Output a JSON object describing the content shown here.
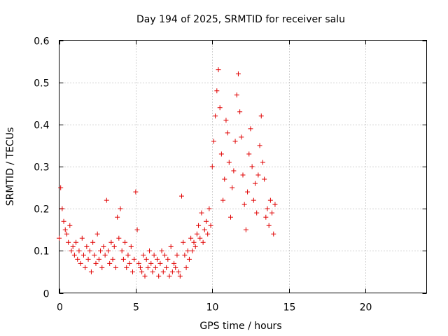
{
  "chart_data": {
    "type": "scatter",
    "title": "Day 194 of 2025, SRMTID for receiver salu",
    "xlabel": "GPS time / hours",
    "ylabel": "SRMTID / TECUs",
    "xlim": [
      0,
      24
    ],
    "ylim": [
      0,
      0.6
    ],
    "xticks": [
      0,
      5,
      10,
      15,
      20
    ],
    "yticks": [
      0,
      0.1,
      0.2,
      0.3,
      0.4,
      0.5,
      0.6
    ],
    "xtick_labels": [
      "0",
      "5",
      "10",
      "15",
      "20"
    ],
    "ytick_labels": [
      "0",
      "0.1",
      "0.2",
      "0.3",
      "0.4",
      "0.5",
      "0.6"
    ],
    "grid": true,
    "marker": "+",
    "color": "#e00000",
    "series": [
      {
        "name": "SRMTID",
        "x": [
          0.0,
          0.1,
          0.2,
          0.3,
          0.4,
          0.5,
          0.6,
          0.7,
          0.8,
          0.9,
          1.0,
          1.1,
          1.2,
          1.3,
          1.4,
          1.5,
          1.6,
          1.7,
          1.8,
          1.9,
          2.0,
          2.1,
          2.2,
          2.3,
          2.4,
          2.5,
          2.6,
          2.7,
          2.8,
          2.9,
          3.0,
          3.1,
          3.2,
          3.3,
          3.4,
          3.5,
          3.6,
          3.7,
          3.8,
          3.9,
          4.0,
          4.1,
          4.2,
          4.3,
          4.4,
          4.5,
          4.6,
          4.7,
          4.8,
          4.9,
          5.0,
          5.1,
          5.2,
          5.3,
          5.4,
          5.5,
          5.6,
          5.7,
          5.8,
          5.9,
          6.0,
          6.1,
          6.2,
          6.3,
          6.4,
          6.5,
          6.6,
          6.7,
          6.8,
          6.9,
          7.0,
          7.1,
          7.2,
          7.3,
          7.4,
          7.5,
          7.6,
          7.7,
          7.8,
          7.9,
          8.0,
          8.1,
          8.2,
          8.3,
          8.4,
          8.5,
          8.6,
          8.7,
          8.8,
          8.9,
          9.0,
          9.1,
          9.2,
          9.3,
          9.4,
          9.5,
          9.6,
          9.7,
          9.8,
          9.9,
          10.0,
          10.1,
          10.2,
          10.3,
          10.4,
          10.5,
          10.6,
          10.7,
          10.8,
          10.9,
          11.0,
          11.1,
          11.2,
          11.3,
          11.4,
          11.5,
          11.6,
          11.7,
          11.8,
          11.9,
          12.0,
          12.1,
          12.2,
          12.3,
          12.4,
          12.5,
          12.6,
          12.7,
          12.8,
          12.9,
          13.0,
          13.1,
          13.2,
          13.3,
          13.4,
          13.5,
          13.6,
          13.7,
          13.8,
          13.9,
          14.0,
          14.1
        ],
        "y": [
          0.13,
          0.25,
          0.2,
          0.17,
          0.15,
          0.14,
          0.12,
          0.16,
          0.1,
          0.11,
          0.09,
          0.12,
          0.08,
          0.1,
          0.07,
          0.13,
          0.09,
          0.06,
          0.11,
          0.08,
          0.1,
          0.05,
          0.12,
          0.09,
          0.07,
          0.14,
          0.08,
          0.1,
          0.06,
          0.11,
          0.09,
          0.22,
          0.1,
          0.07,
          0.12,
          0.08,
          0.11,
          0.06,
          0.18,
          0.13,
          0.2,
          0.1,
          0.08,
          0.12,
          0.06,
          0.09,
          0.07,
          0.11,
          0.05,
          0.08,
          0.24,
          0.15,
          0.07,
          0.06,
          0.05,
          0.09,
          0.04,
          0.08,
          0.06,
          0.1,
          0.07,
          0.05,
          0.09,
          0.06,
          0.08,
          0.04,
          0.07,
          0.1,
          0.05,
          0.09,
          0.06,
          0.08,
          0.04,
          0.11,
          0.05,
          0.07,
          0.06,
          0.09,
          0.05,
          0.04,
          0.23,
          0.12,
          0.09,
          0.06,
          0.1,
          0.08,
          0.13,
          0.1,
          0.12,
          0.11,
          0.14,
          0.16,
          0.13,
          0.19,
          0.12,
          0.15,
          0.17,
          0.14,
          0.2,
          0.16,
          0.3,
          0.36,
          0.42,
          0.48,
          0.53,
          0.44,
          0.33,
          0.22,
          0.27,
          0.41,
          0.38,
          0.31,
          0.18,
          0.25,
          0.29,
          0.36,
          0.47,
          0.52,
          0.43,
          0.37,
          0.28,
          0.21,
          0.15,
          0.24,
          0.33,
          0.39,
          0.3,
          0.22,
          0.26,
          0.19,
          0.28,
          0.35,
          0.42,
          0.31,
          0.27,
          0.18,
          0.2,
          0.16,
          0.22,
          0.19,
          0.14,
          0.21
        ]
      }
    ]
  }
}
